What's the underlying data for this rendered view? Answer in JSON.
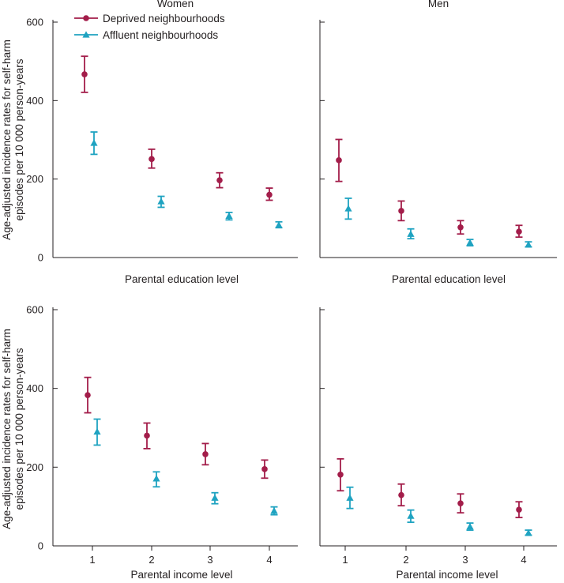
{
  "colors": {
    "deprived": "#a31d4a",
    "affluent": "#1fa3c1",
    "axis": "#231f20"
  },
  "legend": [
    {
      "name": "Deprived neighbourhoods",
      "marker": "circle",
      "color_key": "deprived"
    },
    {
      "name": "Affluent neighbourhoods",
      "marker": "triangle",
      "color_key": "affluent"
    }
  ],
  "shared_ylabel_line1": "Age-adjusted incidence rates for self-harm",
  "shared_ylabel_line2": "episodes per 10 000 person-years",
  "chart_data": [
    {
      "type": "scatter",
      "title": "Women",
      "xlabel": "Parental education level",
      "x_ticks_shown": false,
      "x": [
        1,
        2,
        3,
        4
      ],
      "ylim": [
        0,
        600
      ],
      "yticks": [
        0,
        200,
        400,
        600
      ],
      "series": [
        {
          "name": "Deprived neighbourhoods",
          "values": [
            467,
            251,
            197,
            160
          ],
          "lower": [
            421,
            228,
            178,
            146
          ],
          "upper": [
            513,
            276,
            216,
            177
          ]
        },
        {
          "name": "Affluent neighbourhoods",
          "values": [
            292,
            143,
            106,
            83
          ],
          "lower": [
            263,
            128,
            96,
            76
          ],
          "upper": [
            320,
            156,
            115,
            91
          ]
        }
      ]
    },
    {
      "type": "scatter",
      "title": "Men",
      "xlabel": "Parental education level",
      "x_ticks_shown": false,
      "x": [
        1,
        2,
        3,
        4
      ],
      "ylim": [
        0,
        600
      ],
      "yticks": [
        0,
        200,
        400,
        600
      ],
      "series": [
        {
          "name": "Deprived neighbourhoods",
          "values": [
            248,
            119,
            77,
            66
          ],
          "lower": [
            194,
            94,
            60,
            52
          ],
          "upper": [
            301,
            144,
            94,
            82
          ]
        },
        {
          "name": "Affluent neighbourhoods",
          "values": [
            125,
            60,
            38,
            33
          ],
          "lower": [
            98,
            48,
            30,
            27
          ],
          "upper": [
            151,
            73,
            46,
            40
          ]
        }
      ]
    },
    {
      "type": "scatter",
      "title": "",
      "xlabel": "Parental income level",
      "x_ticks_shown": true,
      "x": [
        1,
        2,
        3,
        4
      ],
      "xtick_labels": [
        "1",
        "2",
        "3",
        "4"
      ],
      "ylim": [
        0,
        600
      ],
      "yticks": [
        0,
        200,
        400,
        600
      ],
      "series": [
        {
          "name": "Deprived neighbourhoods",
          "values": [
            383,
            280,
            233,
            195
          ],
          "lower": [
            338,
            247,
            206,
            172
          ],
          "upper": [
            428,
            312,
            260,
            218
          ]
        },
        {
          "name": "Affluent neighbourhoods",
          "values": [
            290,
            171,
            122,
            89
          ],
          "lower": [
            256,
            150,
            107,
            79
          ],
          "upper": [
            322,
            188,
            135,
            99
          ]
        }
      ]
    },
    {
      "type": "scatter",
      "title": "",
      "xlabel": "Parental income level",
      "x_ticks_shown": true,
      "x": [
        1,
        2,
        3,
        4
      ],
      "xtick_labels": [
        "1",
        "2",
        "3",
        "4"
      ],
      "ylim": [
        0,
        600
      ],
      "yticks": [
        0,
        200,
        400,
        600
      ],
      "series": [
        {
          "name": "Deprived neighbourhoods",
          "values": [
            181,
            129,
            108,
            92
          ],
          "lower": [
            140,
            102,
            84,
            72
          ],
          "upper": [
            221,
            157,
            132,
            112
          ]
        },
        {
          "name": "Affluent neighbourhoods",
          "values": [
            122,
            76,
            49,
            33
          ],
          "lower": [
            95,
            60,
            40,
            27
          ],
          "upper": [
            149,
            91,
            58,
            40
          ]
        }
      ]
    }
  ]
}
